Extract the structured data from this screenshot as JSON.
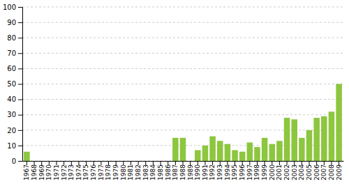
{
  "chart_data": {
    "type": "bar",
    "categories": [
      "1967",
      "1968",
      "1969",
      "1970",
      "1971",
      "1972",
      "1973",
      "1974",
      "1975",
      "1976",
      "1977",
      "1978",
      "1979",
      "1980",
      "1981",
      "1982",
      "1983",
      "1984",
      "1985",
      "1986",
      "1987",
      "1988",
      "1989",
      "1990",
      "1991",
      "1992",
      "1993",
      "1994",
      "1995",
      "1996",
      "1997",
      "1998",
      "1999",
      "2000",
      "2001",
      "2002",
      "2003",
      "2004",
      "2005",
      "2006",
      "2007",
      "2008",
      "2009"
    ],
    "values": [
      6,
      0,
      0,
      0,
      0,
      0,
      0,
      0,
      0,
      0,
      0,
      0,
      0,
      0,
      0,
      0,
      0,
      0,
      0,
      0,
      15,
      15,
      0,
      7,
      10,
      16,
      13,
      11,
      7,
      6,
      12,
      9,
      15,
      11,
      13,
      28,
      27,
      15,
      20,
      28,
      29,
      32,
      50
    ],
    "color": "#8dc63f",
    "ylim": [
      0,
      100
    ],
    "yticks": [
      0,
      10,
      20,
      30,
      40,
      50,
      60,
      70,
      80,
      90,
      100
    ],
    "grid": true
  }
}
